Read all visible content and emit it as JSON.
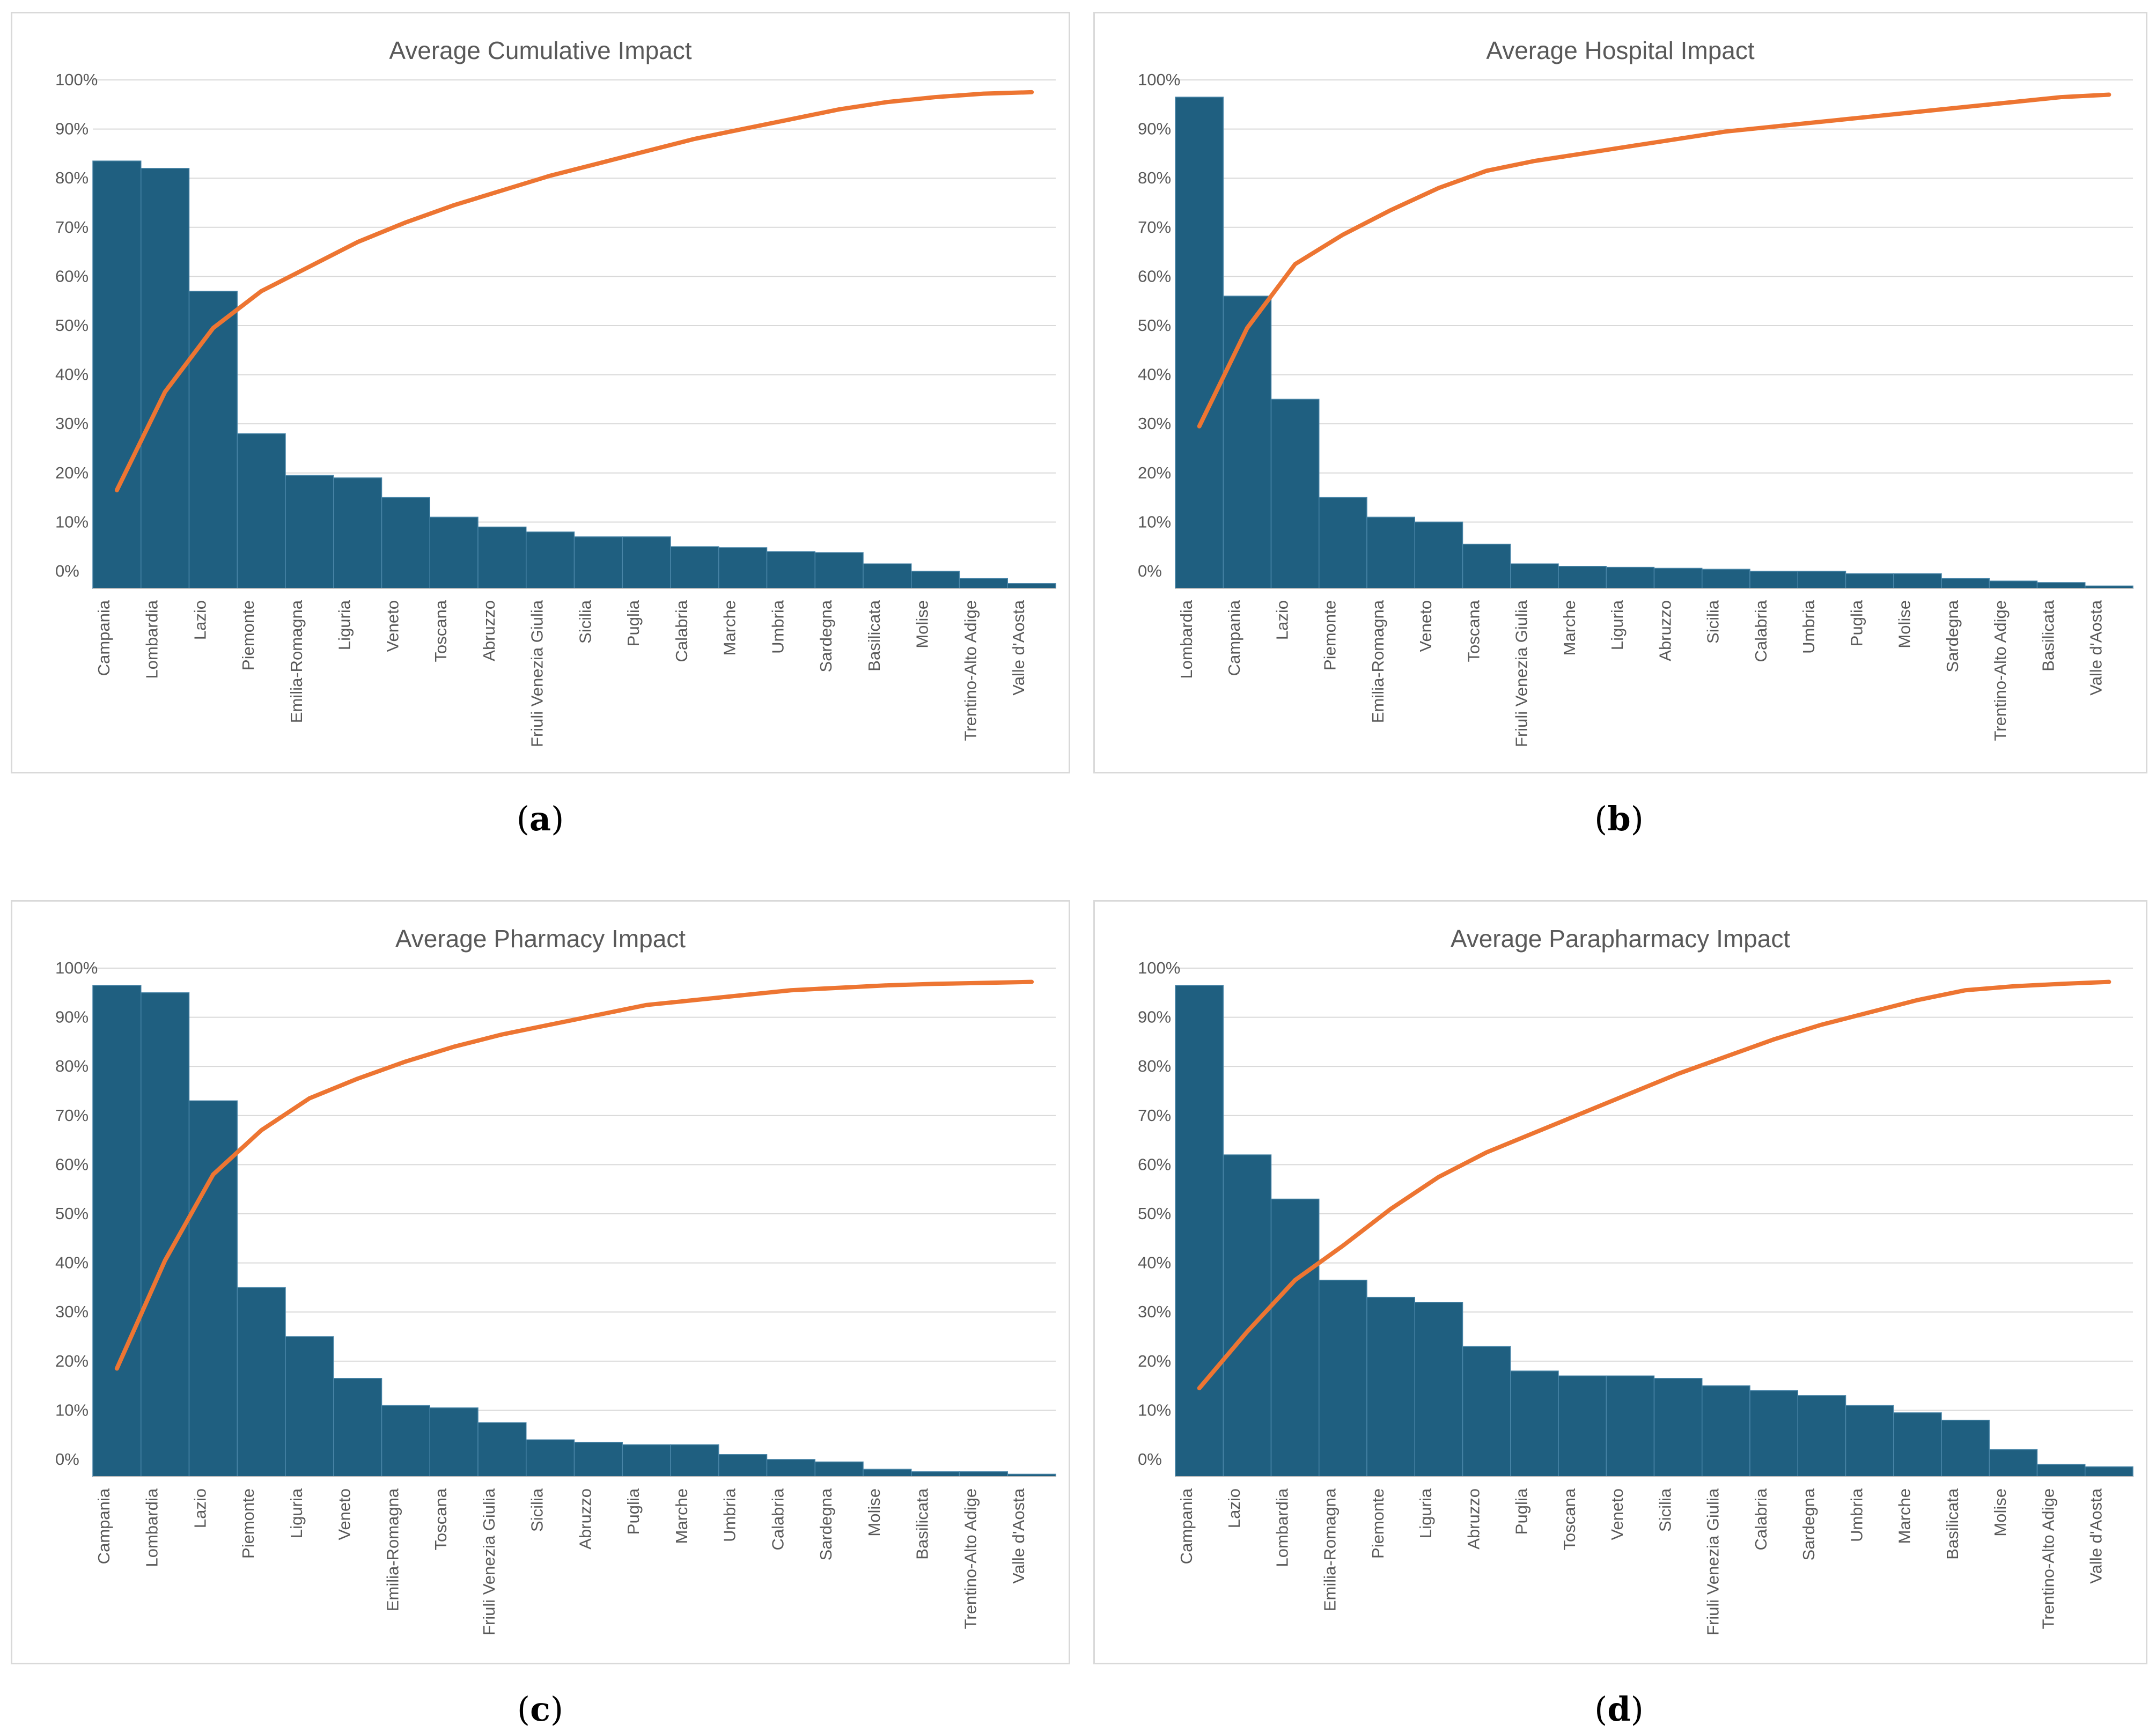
{
  "colors": {
    "bar": "#1f5f80",
    "line": "#ed7532",
    "grid": "#d9d9d9",
    "text": "#595959"
  },
  "y_ticks": [
    "0%",
    "10%",
    "20%",
    "30%",
    "40%",
    "50%",
    "60%",
    "70%",
    "80%",
    "90%",
    "100%"
  ],
  "chart_data": [
    {
      "type": "pareto",
      "title": "Average Cumulative Impact",
      "caption": "a",
      "ylim": [
        -3.5,
        100
      ],
      "categories": [
        "Campania",
        "Lombardia",
        "Lazio",
        "Piemonte",
        "Emilia-Romagna",
        "Liguria",
        "Veneto",
        "Toscana",
        "Abruzzo",
        "Friuli Venezia Giulia",
        "Sicilia",
        "Puglia",
        "Calabria",
        "Marche",
        "Umbria",
        "Sardegna",
        "Basilicata",
        "Molise",
        "Trentino-Alto Adige",
        "Valle d'Aosta"
      ],
      "bar_values": [
        83.5,
        82,
        57,
        28,
        19.5,
        19,
        15,
        11,
        9,
        8,
        7,
        7,
        5,
        4.8,
        4,
        3.8,
        1.5,
        0,
        -1.5,
        -2.5
      ],
      "line_values": [
        16.5,
        36.5,
        49.5,
        57,
        62,
        67,
        71,
        74.5,
        77.5,
        80.5,
        83,
        85.5,
        88,
        90,
        92,
        94,
        95.5,
        96.5,
        97.2,
        97.5
      ]
    },
    {
      "type": "pareto",
      "title": "Average Hospital Impact",
      "caption": "b",
      "ylim": [
        -3.5,
        100
      ],
      "categories": [
        "Lombardia",
        "Campania",
        "Lazio",
        "Piemonte",
        "Emilia-Romagna",
        "Veneto",
        "Toscana",
        "Friuli Venezia Giulia",
        "Marche",
        "Liguria",
        "Abruzzo",
        "Sicilia",
        "Calabria",
        "Umbria",
        "Puglia",
        "Molise",
        "Sardegna",
        "Trentino-Alto Adige",
        "Basilicata",
        "Valle d'Aosta"
      ],
      "bar_values": [
        96.5,
        56,
        35,
        15,
        11,
        10,
        5.5,
        1.5,
        1,
        0.8,
        0.6,
        0.4,
        0,
        0,
        -0.5,
        -0.5,
        -1.5,
        -2,
        -2.3,
        -3
      ],
      "line_values": [
        29.5,
        49.5,
        62.5,
        68.5,
        73.5,
        78,
        81.5,
        83.5,
        85,
        86.5,
        88,
        89.5,
        90.5,
        91.5,
        92.5,
        93.5,
        94.5,
        95.5,
        96.5,
        97
      ]
    },
    {
      "type": "pareto",
      "title": "Average Pharmacy Impact",
      "caption": "c",
      "ylim": [
        -3.5,
        100
      ],
      "categories": [
        "Campania",
        "Lombardia",
        "Lazio",
        "Piemonte",
        "Liguria",
        "Veneto",
        "Emilia-Romagna",
        "Toscana",
        "Friuli Venezia Giulia",
        "Sicilia",
        "Abruzzo",
        "Puglia",
        "Marche",
        "Umbria",
        "Calabria",
        "Sardegna",
        "Molise",
        "Basilicata",
        "Trentino-Alto Adige",
        "Valle d'Aosta"
      ],
      "bar_values": [
        96.5,
        95,
        73,
        35,
        25,
        16.5,
        11,
        10.5,
        7.5,
        4,
        3.5,
        3,
        3,
        1,
        0,
        -0.5,
        -2,
        -2.5,
        -2.5,
        -3
      ],
      "line_values": [
        18.5,
        40.5,
        58,
        67,
        73.5,
        77.5,
        81,
        84,
        86.5,
        88.5,
        90.5,
        92.5,
        93.5,
        94.5,
        95.5,
        96,
        96.5,
        96.8,
        97,
        97.2
      ]
    },
    {
      "type": "pareto",
      "title": "Average Parapharmacy Impact",
      "caption": "d",
      "ylim": [
        -3.5,
        100
      ],
      "categories": [
        "Campania",
        "Lazio",
        "Lombardia",
        "Emilia-Romagna",
        "Piemonte",
        "Liguria",
        "Abruzzo",
        "Puglia",
        "Toscana",
        "Veneto",
        "Sicilia",
        "Friuli Venezia Giulia",
        "Calabria",
        "Sardegna",
        "Umbria",
        "Marche",
        "Basilicata",
        "Molise",
        "Trentino-Alto Adige",
        "Valle d'Aosta"
      ],
      "bar_values": [
        96.5,
        62,
        53,
        36.5,
        33,
        32,
        23,
        18,
        17,
        17,
        16.5,
        15,
        14,
        13,
        11,
        9.5,
        8,
        2,
        -1,
        -1.5
      ],
      "line_values": [
        14.5,
        26,
        36.5,
        43.5,
        51,
        57.5,
        62.5,
        66.5,
        70.5,
        74.5,
        78.5,
        82,
        85.5,
        88.5,
        91,
        93.5,
        95.5,
        96.3,
        96.8,
        97.2
      ]
    }
  ]
}
